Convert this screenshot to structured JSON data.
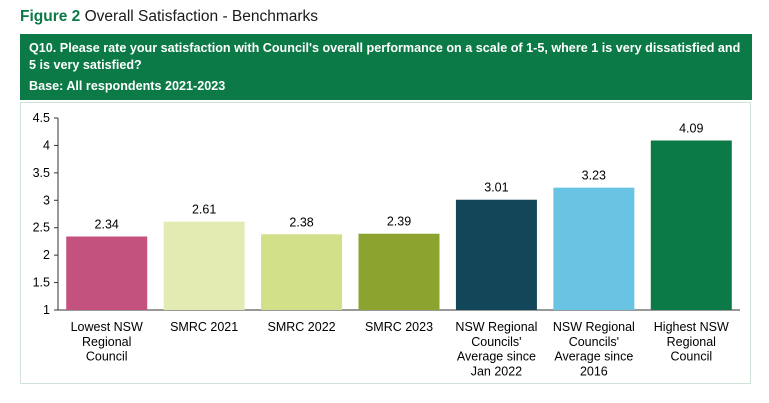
{
  "figure": {
    "label": "Figure 2",
    "title": "Overall Satisfaction - Benchmarks"
  },
  "question": {
    "text": "Q10. Please rate your satisfaction with Council's overall performance on a scale of 1-5, where 1 is very dissatisfied and 5 is very satisfied?",
    "base": "Base: All respondents 2021-2023"
  },
  "chart_data": {
    "type": "bar",
    "title": "",
    "xlabel": "",
    "ylabel": "",
    "ylim": [
      1,
      4.5
    ],
    "yticks": [
      "1",
      "1.5",
      "2",
      "2.5",
      "3",
      "3.5",
      "4",
      "4.5"
    ],
    "grid": false,
    "legend": "none",
    "categories": [
      "Lowest NSW Regional Council",
      "SMRC 2021",
      "SMRC 2022",
      "SMRC 2023",
      "NSW Regional Councils' Average since Jan 2022",
      "NSW Regional Councils' Average since 2016",
      "Highest NSW Regional Council"
    ],
    "category_lines": [
      [
        "Lowest NSW",
        "Regional",
        "Council"
      ],
      [
        "SMRC 2021"
      ],
      [
        "SMRC 2022"
      ],
      [
        "SMRC 2023"
      ],
      [
        "NSW Regional",
        "Councils'",
        "Average since",
        "Jan 2022"
      ],
      [
        "NSW Regional",
        "Councils'",
        "Average since",
        "2016"
      ],
      [
        "Highest NSW",
        "Regional",
        "Council"
      ]
    ],
    "values": [
      2.34,
      2.61,
      2.38,
      2.39,
      3.01,
      3.23,
      4.09
    ],
    "value_labels": [
      "2.34",
      "2.61",
      "2.38",
      "2.39",
      "3.01",
      "3.23",
      "4.09"
    ],
    "colors": [
      "#c4527f",
      "#e3ebb3",
      "#d3e08a",
      "#8ca32f",
      "#12475a",
      "#69c4e4",
      "#0c7a47"
    ]
  }
}
